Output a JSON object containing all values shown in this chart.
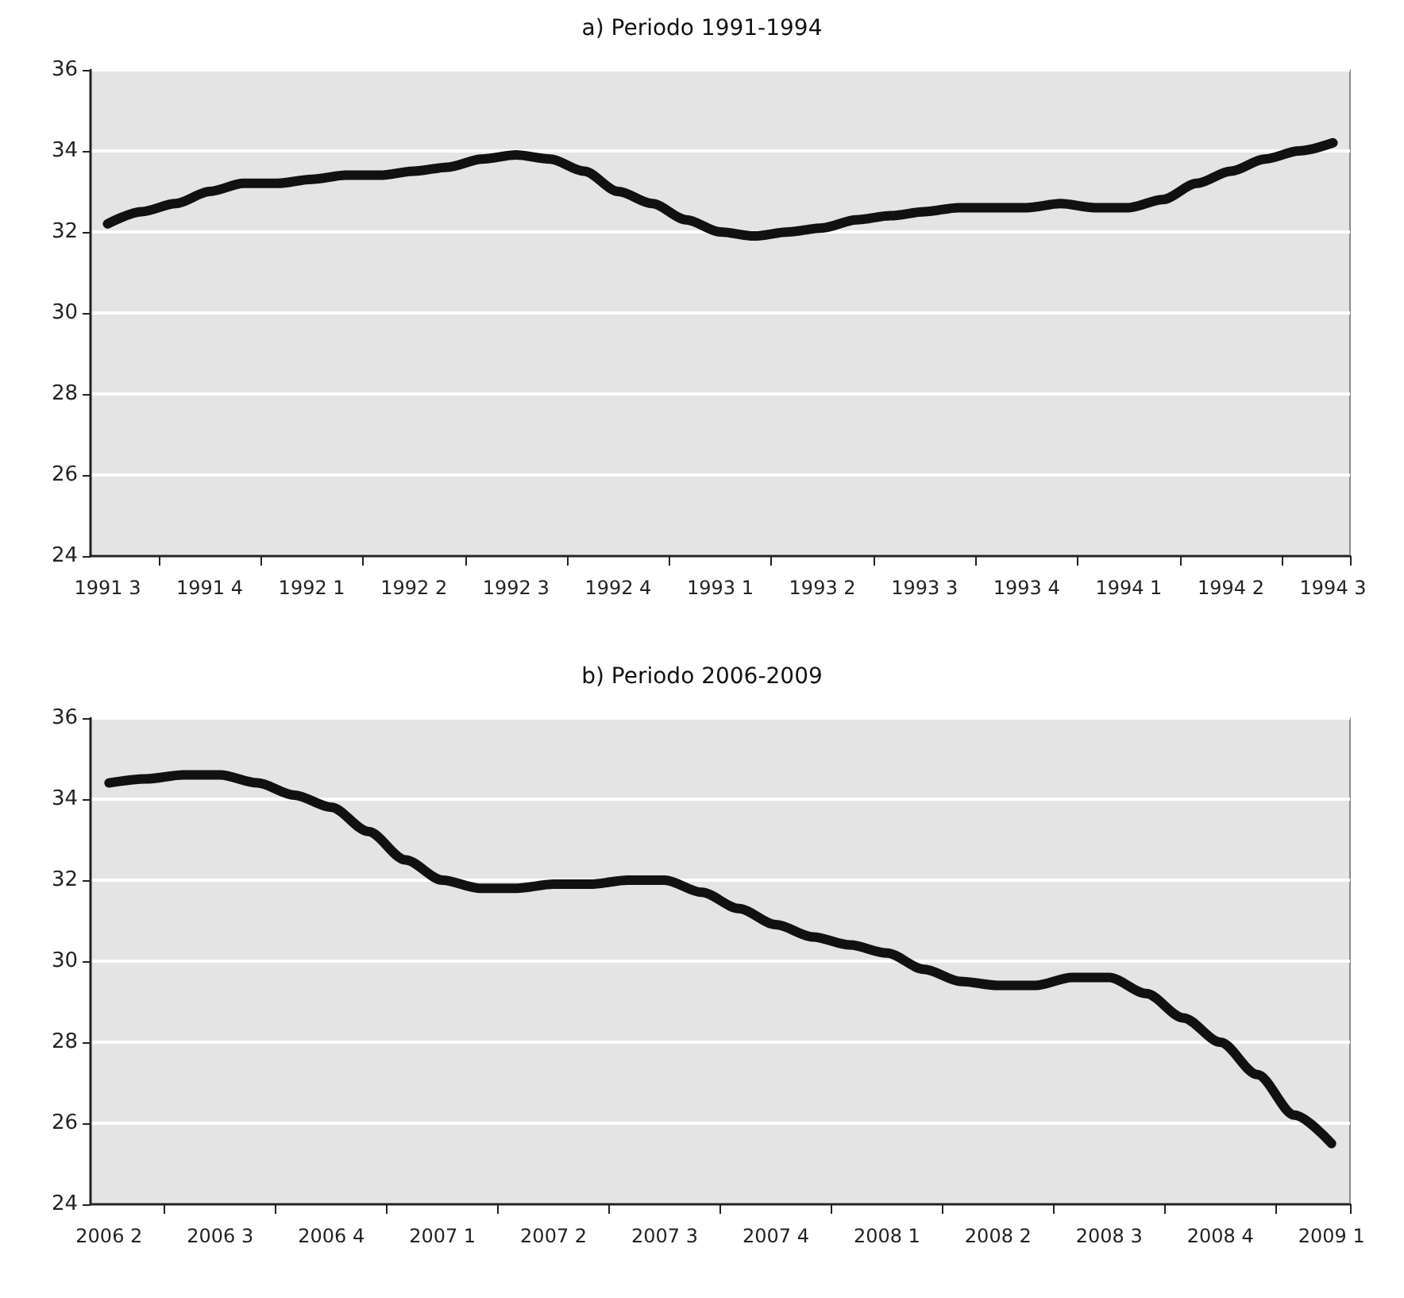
{
  "chart_data": [
    {
      "type": "line",
      "title": "a) Periodo 1991-1994",
      "categories": [
        "1991 3",
        null,
        null,
        "1991 4",
        null,
        null,
        "1992 1",
        null,
        null,
        "1992 2",
        null,
        null,
        "1992 3",
        null,
        null,
        "1992 4",
        null,
        null,
        "1993 1",
        null,
        null,
        "1993 2",
        null,
        null,
        "1993 3",
        null,
        null,
        "1993 4",
        null,
        null,
        "1994 1",
        null,
        null,
        "1994 2",
        null,
        null,
        "1994 3"
      ],
      "series": [
        {
          "color": "#111111",
          "values": [
            32.2,
            32.5,
            32.7,
            33.0,
            33.2,
            33.2,
            33.3,
            33.4,
            33.4,
            33.5,
            33.6,
            33.8,
            33.9,
            33.8,
            33.5,
            33.0,
            32.7,
            32.3,
            32.0,
            31.9,
            32.0,
            32.1,
            32.3,
            32.4,
            32.5,
            32.6,
            32.6,
            32.6,
            32.7,
            32.6,
            32.6,
            32.8,
            33.2,
            33.5,
            33.8,
            34.0,
            34.2
          ]
        }
      ],
      "ylim": [
        24,
        36
      ],
      "yticks": [
        24,
        26,
        28,
        30,
        32,
        34,
        36
      ],
      "grid": "y"
    },
    {
      "type": "line",
      "title": "b) Periodo 2006-2009",
      "categories": [
        "2006 2",
        null,
        null,
        "2006 3",
        null,
        null,
        "2006 4",
        null,
        null,
        "2007 1",
        null,
        null,
        "2007 2",
        null,
        null,
        "2007 3",
        null,
        null,
        "2007 4",
        null,
        null,
        "2008 1",
        null,
        null,
        "2008 2",
        null,
        null,
        "2008 3",
        null,
        null,
        "2008 4",
        null,
        null,
        "2009 1"
      ],
      "series": [
        {
          "color": "#111111",
          "values": [
            34.4,
            34.5,
            34.6,
            34.6,
            34.4,
            34.1,
            33.8,
            33.2,
            32.5,
            32.0,
            31.8,
            31.8,
            31.9,
            31.9,
            32.0,
            32.0,
            31.7,
            31.3,
            30.9,
            30.6,
            30.4,
            30.2,
            29.8,
            29.5,
            29.4,
            29.4,
            29.6,
            29.6,
            29.2,
            28.6,
            28.0,
            27.2,
            26.2,
            25.5
          ]
        }
      ],
      "ylim": [
        24,
        36
      ],
      "yticks": [
        24,
        26,
        28,
        30,
        32,
        34,
        36
      ],
      "grid": "y"
    }
  ]
}
